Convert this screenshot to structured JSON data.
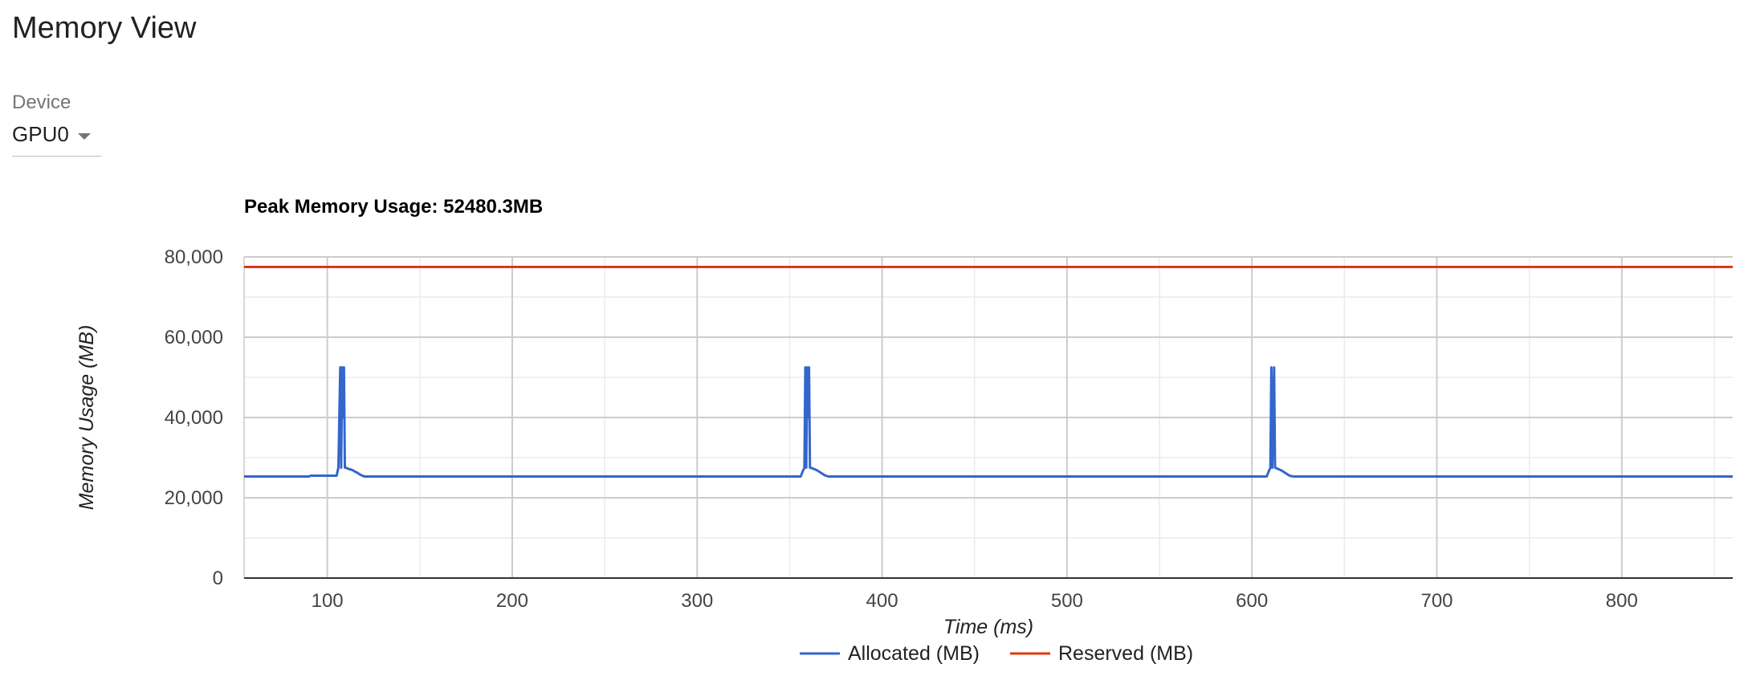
{
  "page": {
    "title": "Memory View"
  },
  "device": {
    "label": "Device",
    "selected": "GPU0"
  },
  "chart_data": {
    "type": "line",
    "title": "Peak Memory Usage: 52480.3MB",
    "xlabel": "Time (ms)",
    "ylabel": "Memory Usage (MB)",
    "xlim": [
      55,
      860
    ],
    "ylim": [
      0,
      80000
    ],
    "x_ticks": [
      100,
      200,
      300,
      400,
      500,
      600,
      700,
      800
    ],
    "y_ticks": [
      0,
      20000,
      40000,
      60000,
      80000
    ],
    "x_tick_labels": [
      "100",
      "200",
      "300",
      "400",
      "500",
      "600",
      "700",
      "800"
    ],
    "y_tick_labels": [
      "0",
      "20,000",
      "40,000",
      "60,000",
      "80,000"
    ],
    "grid": true,
    "legend_position": "bottom",
    "series": [
      {
        "name": "Allocated (MB)",
        "color": "#3366cc",
        "x": [
          55,
          90,
          91,
          105,
          106,
          107,
          107.5,
          108,
          108.5,
          109,
          109.5,
          110,
          111,
          112,
          113,
          114,
          115,
          116,
          117,
          118,
          120,
          356,
          357,
          358,
          358.5,
          359,
          359.5,
          360,
          360.5,
          361,
          362,
          363,
          364,
          365,
          366,
          367,
          368,
          369,
          371,
          608,
          609,
          610,
          610.5,
          611,
          611.5,
          612,
          612.5,
          613,
          614,
          615,
          616,
          617,
          618,
          619,
          620,
          621,
          623,
          860
        ],
        "y": [
          25300,
          25300,
          25500,
          25500,
          27500,
          52480,
          27500,
          52480,
          40000,
          52480,
          27500,
          27500,
          27300,
          27100,
          27000,
          26800,
          26500,
          26300,
          26000,
          25700,
          25300,
          25300,
          26500,
          27500,
          52480,
          27500,
          52480,
          40000,
          52480,
          27500,
          27400,
          27200,
          27000,
          26800,
          26500,
          26200,
          25900,
          25600,
          25300,
          25300,
          26500,
          27500,
          52480,
          27500,
          40000,
          52480,
          27500,
          27400,
          27200,
          27000,
          26800,
          26500,
          26200,
          25900,
          25600,
          25400,
          25300,
          25300
        ]
      },
      {
        "name": "Reserved (MB)",
        "color": "#dc3912",
        "x": [
          55,
          860
        ],
        "y": [
          77500,
          77500
        ]
      }
    ]
  }
}
